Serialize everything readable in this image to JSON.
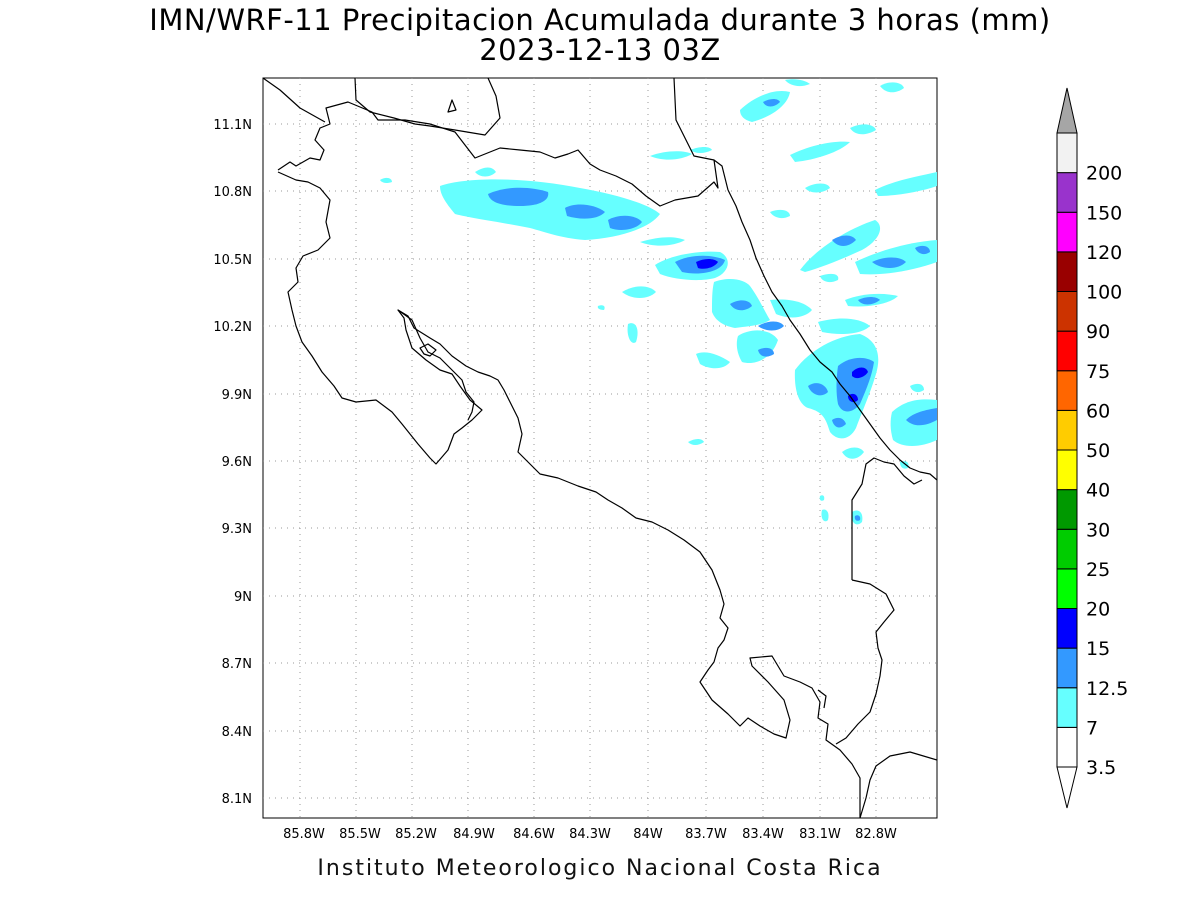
{
  "header": {
    "title": "IMN/WRF-11 Precipitacion Acumulada durante 3 horas (mm)",
    "datetime": "2023-12-13 03Z"
  },
  "footer": {
    "credit": "Instituto Meteorologico Nacional Costa Rica"
  },
  "map": {
    "lon_labels": [
      "85.8W",
      "85.5W",
      "85.2W",
      "84.9W",
      "84.6W",
      "84.3W",
      "84W",
      "83.7W",
      "83.4W",
      "83.1W",
      "82.8W"
    ],
    "lat_labels": [
      "11.1N",
      "10.8N",
      "10.5N",
      "10.2N",
      "9.9N",
      "9.6N",
      "9.3N",
      "9N",
      "8.7N",
      "8.4N",
      "8.1N"
    ],
    "lon_range": [
      -85.99,
      -82.64
    ],
    "lat_range": [
      8.02,
      11.3
    ],
    "grid": "dotted"
  },
  "legend": {
    "levels": [
      {
        "label": "3.5",
        "color": "#ffffff"
      },
      {
        "label": "7",
        "color": "#66ffff"
      },
      {
        "label": "12.5",
        "color": "#3399ff"
      },
      {
        "label": "15",
        "color": "#0000ff"
      },
      {
        "label": "20",
        "color": "#00ff00"
      },
      {
        "label": "25",
        "color": "#00cc00"
      },
      {
        "label": "30",
        "color": "#009900"
      },
      {
        "label": "40",
        "color": "#ffff00"
      },
      {
        "label": "50",
        "color": "#ffcc00"
      },
      {
        "label": "60",
        "color": "#ff6600"
      },
      {
        "label": "75",
        "color": "#ff0000"
      },
      {
        "label": "90",
        "color": "#cc3300"
      },
      {
        "label": "100",
        "color": "#990000"
      },
      {
        "label": "120",
        "color": "#ff00ff"
      },
      {
        "label": "150",
        "color": "#9933cc"
      },
      {
        "label": "200",
        "color": "#f2f2f2"
      }
    ],
    "top_cap_color": "#a6a6a6",
    "bottom_cap_color": "#ffffff"
  },
  "colors": {
    "light_rain": "#66ffff",
    "moderate_rain": "#3399ff",
    "heavy_rain": "#0000ff",
    "coastline": "#000000",
    "grid": "#999999"
  }
}
